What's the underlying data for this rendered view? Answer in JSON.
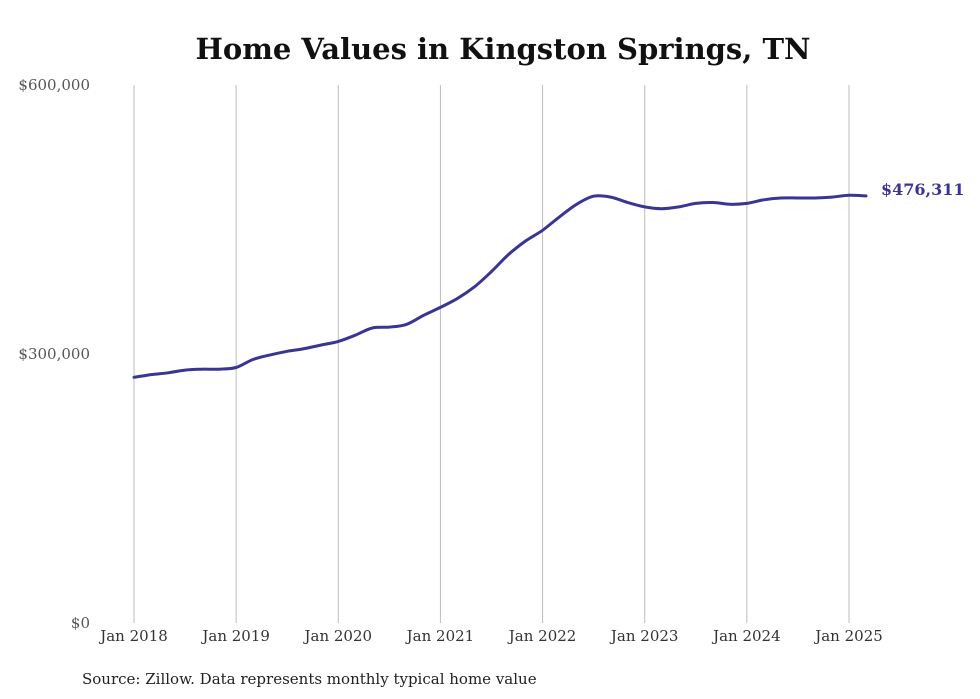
{
  "chart_data": {
    "type": "line",
    "title": "Home Values in Kingston Springs, TN",
    "xlabel": "",
    "ylabel": "",
    "ylim": [
      0,
      600000
    ],
    "y_ticks": [
      "$0",
      "$300,000",
      "$600,000"
    ],
    "y_tick_values": [
      0,
      300000,
      600000
    ],
    "x_ticks": [
      "Jan 2018",
      "Jan 2019",
      "Jan 2020",
      "Jan 2021",
      "Jan 2022",
      "Jan 2023",
      "Jan 2024",
      "Jan 2025"
    ],
    "x_tick_values": [
      "2018-01",
      "2019-01",
      "2020-01",
      "2021-01",
      "2022-01",
      "2023-01",
      "2024-01",
      "2025-01"
    ],
    "grid": "vertical",
    "series": [
      {
        "color": "#3a3494",
        "points": [
          [
            "2018-01",
            274000
          ],
          [
            "2018-03",
            277000
          ],
          [
            "2018-05",
            279000
          ],
          [
            "2018-07",
            282000
          ],
          [
            "2018-09",
            283000
          ],
          [
            "2018-11",
            283000
          ],
          [
            "2019-01",
            285000
          ],
          [
            "2019-03",
            294000
          ],
          [
            "2019-05",
            299000
          ],
          [
            "2019-07",
            303000
          ],
          [
            "2019-09",
            306000
          ],
          [
            "2019-11",
            310000
          ],
          [
            "2020-01",
            314000
          ],
          [
            "2020-03",
            321000
          ],
          [
            "2020-05",
            329000
          ],
          [
            "2020-07",
            330000
          ],
          [
            "2020-09",
            333000
          ],
          [
            "2020-11",
            343000
          ],
          [
            "2021-01",
            352000
          ],
          [
            "2021-03",
            362000
          ],
          [
            "2021-05",
            375000
          ],
          [
            "2021-07",
            392000
          ],
          [
            "2021-09",
            411000
          ],
          [
            "2021-11",
            426000
          ],
          [
            "2022-01",
            438000
          ],
          [
            "2022-03",
            453000
          ],
          [
            "2022-05",
            467000
          ],
          [
            "2022-07",
            476000
          ],
          [
            "2022-09",
            475000
          ],
          [
            "2022-11",
            469000
          ],
          [
            "2023-01",
            464000
          ],
          [
            "2023-03",
            462000
          ],
          [
            "2023-05",
            464000
          ],
          [
            "2023-07",
            468000
          ],
          [
            "2023-09",
            469000
          ],
          [
            "2023-11",
            467000
          ],
          [
            "2024-01",
            468000
          ],
          [
            "2024-03",
            472000
          ],
          [
            "2024-05",
            474000
          ],
          [
            "2024-07",
            474000
          ],
          [
            "2024-09",
            474000
          ],
          [
            "2024-11",
            475000
          ],
          [
            "2025-01",
            477000
          ],
          [
            "2025-03",
            476311
          ]
        ]
      }
    ],
    "end_label": "$476,311",
    "source": "Source: Zillow. Data represents monthly typical home value"
  }
}
